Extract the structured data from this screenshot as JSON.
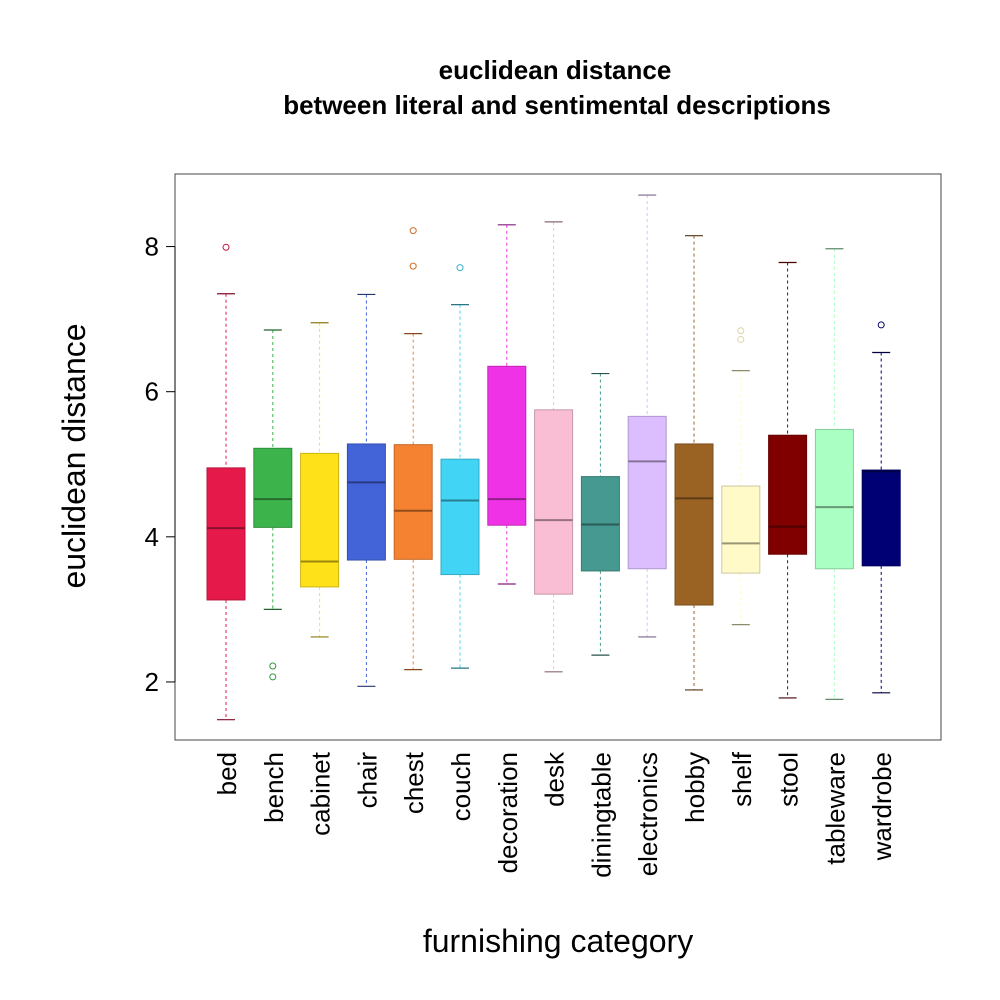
{
  "chart_data": {
    "type": "boxplot",
    "title": "euclidean distance",
    "subtitle": "between literal and sentimental descriptions",
    "xlabel": "furnishing category",
    "ylabel": "euclidean distance",
    "ylim": [
      1.2,
      9.0
    ],
    "yticks": [
      2,
      4,
      6,
      8
    ],
    "grid": false,
    "legend": "none",
    "categories": [
      "bed",
      "bench",
      "cabinet",
      "chair",
      "chest",
      "couch",
      "decoration",
      "desk",
      "diningtable",
      "electronics",
      "hobby",
      "shelf",
      "stool",
      "tableware",
      "wardrobe"
    ],
    "boxes": [
      {
        "category": "bed",
        "color": "#E6194B",
        "whisker_low": 1.48,
        "q1": 3.13,
        "median": 4.12,
        "q3": 4.95,
        "whisker_high": 7.35,
        "outliers": [
          7.99
        ]
      },
      {
        "category": "bench",
        "color": "#3CB44B",
        "whisker_low": 3.0,
        "q1": 4.13,
        "median": 4.52,
        "q3": 5.22,
        "whisker_high": 6.85,
        "outliers": [
          2.22,
          2.07
        ]
      },
      {
        "category": "cabinet",
        "color": "#FFE119",
        "whisker_low": 2.62,
        "q1": 3.31,
        "median": 3.66,
        "q3": 5.15,
        "whisker_high": 6.95,
        "outliers": []
      },
      {
        "category": "chair",
        "color": "#4363D8",
        "whisker_low": 1.94,
        "q1": 3.68,
        "median": 4.75,
        "q3": 5.28,
        "whisker_high": 7.34,
        "outliers": []
      },
      {
        "category": "chest",
        "color": "#F58231",
        "whisker_low": 2.17,
        "q1": 3.69,
        "median": 4.36,
        "q3": 5.27,
        "whisker_high": 6.8,
        "outliers": [
          8.22,
          7.73
        ]
      },
      {
        "category": "couch",
        "color": "#42D4F4",
        "whisker_low": 2.19,
        "q1": 3.48,
        "median": 4.5,
        "q3": 5.07,
        "whisker_high": 7.2,
        "outliers": [
          7.71
        ]
      },
      {
        "category": "decoration",
        "color": "#F032E6",
        "whisker_low": 3.35,
        "q1": 4.16,
        "median": 4.52,
        "q3": 6.35,
        "whisker_high": 8.3,
        "outliers": []
      },
      {
        "category": "desk",
        "color": "#FABED4",
        "whisker_low": 2.14,
        "q1": 3.21,
        "median": 4.23,
        "q3": 5.75,
        "whisker_high": 8.34,
        "outliers": []
      },
      {
        "category": "diningtable",
        "color": "#469990",
        "whisker_low": 2.37,
        "q1": 3.53,
        "median": 4.17,
        "q3": 4.83,
        "whisker_high": 6.25,
        "outliers": []
      },
      {
        "category": "electronics",
        "color": "#DCBEFF",
        "whisker_low": 2.62,
        "q1": 3.56,
        "median": 5.04,
        "q3": 5.66,
        "whisker_high": 8.71,
        "outliers": []
      },
      {
        "category": "hobby",
        "color": "#9A6324",
        "whisker_low": 1.89,
        "q1": 3.06,
        "median": 4.53,
        "q3": 5.28,
        "whisker_high": 8.15,
        "outliers": []
      },
      {
        "category": "shelf",
        "color": "#FFFAC8",
        "whisker_low": 2.79,
        "q1": 3.5,
        "median": 3.91,
        "q3": 4.7,
        "whisker_high": 6.29,
        "outliers": [
          6.84,
          6.72
        ]
      },
      {
        "category": "stool",
        "color": "#800000",
        "whisker_low": 1.78,
        "q1": 3.76,
        "median": 4.14,
        "q3": 5.4,
        "whisker_high": 7.78,
        "outliers": []
      },
      {
        "category": "tableware",
        "color": "#AAFFC3",
        "whisker_low": 1.76,
        "q1": 3.56,
        "median": 4.41,
        "q3": 5.48,
        "whisker_high": 7.97,
        "outliers": []
      },
      {
        "category": "wardrobe",
        "color": "#000075",
        "whisker_low": 1.85,
        "q1": 3.6,
        "median": 4.9,
        "q3": 4.92,
        "whisker_high": 6.54,
        "outliers": [
          6.92
        ]
      }
    ]
  }
}
